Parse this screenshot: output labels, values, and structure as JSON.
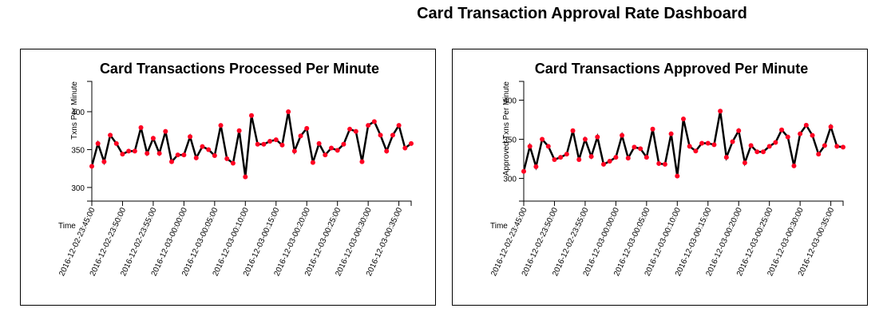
{
  "title": "Card Transaction Approval Rate Dashboard",
  "chart_data": [
    {
      "type": "line",
      "title": "Card Transactions Processed Per Minute",
      "y_label": "Txns Per Minute",
      "x_label": "Time",
      "x": [
        "2016-12-02-23:45:00",
        "2016-12-02-23:46:00",
        "2016-12-02-23:47:00",
        "2016-12-02-23:48:00",
        "2016-12-02-23:49:00",
        "2016-12-02-23:50:00",
        "2016-12-02-23:51:00",
        "2016-12-02-23:52:00",
        "2016-12-02-23:53:00",
        "2016-12-02-23:54:00",
        "2016-12-02-23:55:00",
        "2016-12-02-23:56:00",
        "2016-12-02-23:57:00",
        "2016-12-02-23:58:00",
        "2016-12-02-23:59:00",
        "2016-12-03-00:00:00",
        "2016-12-03-00:01:00",
        "2016-12-03-00:02:00",
        "2016-12-03-00:03:00",
        "2016-12-03-00:04:00",
        "2016-12-03-00:05:00",
        "2016-12-03-00:06:00",
        "2016-12-03-00:07:00",
        "2016-12-03-00:08:00",
        "2016-12-03-00:09:00",
        "2016-12-03-00:10:00",
        "2016-12-03-00:11:00",
        "2016-12-03-00:12:00",
        "2016-12-03-00:13:00",
        "2016-12-03-00:14:00",
        "2016-12-03-00:15:00",
        "2016-12-03-00:16:00",
        "2016-12-03-00:17:00",
        "2016-12-03-00:18:00",
        "2016-12-03-00:19:00",
        "2016-12-03-00:20:00",
        "2016-12-03-00:21:00",
        "2016-12-03-00:22:00",
        "2016-12-03-00:23:00",
        "2016-12-03-00:24:00",
        "2016-12-03-00:25:00",
        "2016-12-03-00:26:00",
        "2016-12-03-00:27:00",
        "2016-12-03-00:28:00",
        "2016-12-03-00:29:00",
        "2016-12-03-00:30:00",
        "2016-12-03-00:31:00",
        "2016-12-03-00:32:00",
        "2016-12-03-00:33:00",
        "2016-12-03-00:34:00",
        "2016-12-03-00:35:00",
        "2016-12-03-00:36:00",
        "2016-12-03-00:37:00"
      ],
      "values": [
        328,
        358,
        334,
        369,
        358,
        344,
        348,
        348,
        379,
        345,
        365,
        345,
        374,
        334,
        343,
        343,
        367,
        339,
        354,
        350,
        342,
        382,
        338,
        332,
        375,
        314,
        395,
        357,
        357,
        361,
        363,
        356,
        400,
        348,
        368,
        378,
        333,
        358,
        343,
        352,
        349,
        357,
        377,
        374,
        334,
        382,
        387,
        369,
        348,
        369,
        382,
        352,
        358
      ],
      "color": "#000000",
      "marker_color": "#ff0022",
      "xlim": [
        "2016-12-02-23:45:00",
        "2016-12-03-00:37:00"
      ],
      "xticks": [
        "2016-12-02-23:45:00",
        "2016-12-02-23:50:00",
        "2016-12-02-23:55:00",
        "2016-12-03-00:00:00",
        "2016-12-03-00:05:00",
        "2016-12-03-00:10:00",
        "2016-12-03-00:15:00",
        "2016-12-03-00:20:00",
        "2016-12-03-00:25:00",
        "2016-12-03-00:30:00",
        "2016-12-03-00:35:00"
      ],
      "ylim": [
        282,
        440
      ],
      "yticks": [
        300,
        350,
        400
      ]
    },
    {
      "type": "line",
      "title": "Card Transactions Approved Per Minute",
      "y_label": "Approved Txns Per Minute",
      "x_label": "Time",
      "x": [
        "2016-12-02-23:45:00",
        "2016-12-02-23:46:00",
        "2016-12-02-23:47:00",
        "2016-12-02-23:48:00",
        "2016-12-02-23:49:00",
        "2016-12-02-23:50:00",
        "2016-12-02-23:51:00",
        "2016-12-02-23:52:00",
        "2016-12-02-23:53:00",
        "2016-12-02-23:54:00",
        "2016-12-02-23:55:00",
        "2016-12-02-23:56:00",
        "2016-12-02-23:57:00",
        "2016-12-02-23:58:00",
        "2016-12-02-23:59:00",
        "2016-12-03-00:00:00",
        "2016-12-03-00:01:00",
        "2016-12-03-00:02:00",
        "2016-12-03-00:03:00",
        "2016-12-03-00:04:00",
        "2016-12-03-00:05:00",
        "2016-12-03-00:06:00",
        "2016-12-03-00:07:00",
        "2016-12-03-00:08:00",
        "2016-12-03-00:09:00",
        "2016-12-03-00:10:00",
        "2016-12-03-00:11:00",
        "2016-12-03-00:12:00",
        "2016-12-03-00:13:00",
        "2016-12-03-00:14:00",
        "2016-12-03-00:15:00",
        "2016-12-03-00:16:00",
        "2016-12-03-00:17:00",
        "2016-12-03-00:18:00",
        "2016-12-03-00:19:00",
        "2016-12-03-00:20:00",
        "2016-12-03-00:21:00",
        "2016-12-03-00:22:00",
        "2016-12-03-00:23:00",
        "2016-12-03-00:24:00",
        "2016-12-03-00:25:00",
        "2016-12-03-00:26:00",
        "2016-12-03-00:27:00",
        "2016-12-03-00:28:00",
        "2016-12-03-00:29:00",
        "2016-12-03-00:30:00",
        "2016-12-03-00:31:00",
        "2016-12-03-00:32:00",
        "2016-12-03-00:33:00",
        "2016-12-03-00:34:00",
        "2016-12-03-00:35:00",
        "2016-12-03-00:36:00",
        "2016-12-03-00:37:00"
      ],
      "values": [
        309,
        341,
        315,
        350,
        341,
        324,
        327,
        331,
        361,
        324,
        350,
        328,
        353,
        318,
        322,
        327,
        355,
        326,
        340,
        338,
        327,
        363,
        319,
        318,
        357,
        303,
        376,
        341,
        335,
        345,
        345,
        343,
        386,
        327,
        347,
        361,
        320,
        342,
        334,
        334,
        341,
        346,
        362,
        353,
        316,
        357,
        368,
        355,
        331,
        342,
        366,
        341,
        340
      ],
      "color": "#000000",
      "marker_color": "#ff0022",
      "xlim": [
        "2016-12-02-23:45:00",
        "2016-12-03-00:37:00"
      ],
      "xticks": [
        "2016-12-02-23:45:00",
        "2016-12-02-23:50:00",
        "2016-12-02-23:55:00",
        "2016-12-03-00:00:00",
        "2016-12-03-00:05:00",
        "2016-12-03-00:10:00",
        "2016-12-03-00:15:00",
        "2016-12-03-00:20:00",
        "2016-12-03-00:25:00",
        "2016-12-03-00:30:00",
        "2016-12-03-00:35:00"
      ],
      "ylim": [
        271,
        424
      ],
      "yticks": [
        300,
        350,
        400
      ]
    }
  ]
}
